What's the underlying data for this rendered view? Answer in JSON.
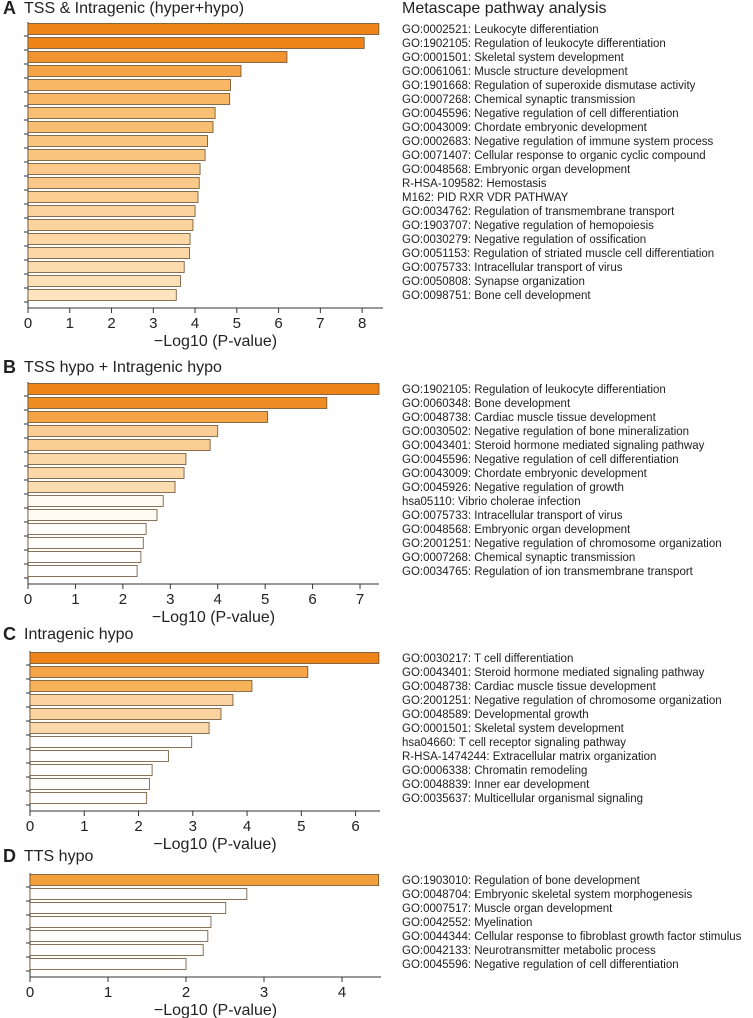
{
  "heading": "Metascape pathway analysis",
  "chart_data": [
    {
      "type": "hbar",
      "panel": "A",
      "title": "TSS & Intragenic (hyper+hypo)",
      "xlabel": "−Log10 (P-value)",
      "categories": [
        "GO:0002521: Leukocyte differentiation",
        "GO:1902105: Regulation of leukocyte differentiation",
        "GO:0001501: Skeletal system development",
        "GO:0061061: Muscle structure development",
        "GO:1901668: Regulation of superoxide dismutase activity",
        "GO:0007268: Chemical synaptic transmission",
        "GO:0045596: Negative regulation of cell differentiation",
        "GO:0043009: Chordate embryonic development",
        "GO:0002683: Negative regulation of immune system process",
        "GO:0071407: Cellular response to organic cyclic compound",
        "GO:0048568: Embryonic organ development",
        "R-HSA-109582: Hemostasis",
        "M162: PID RXR VDR PATHWAY",
        "GO:0034762: Regulation of transmembrane transport",
        "GO:1903707: Negative regulation of hemopoiesis",
        "GO:0030279: Negative regulation of ossification",
        "GO:0051153: Regulation of striated muscle cell differentiation",
        "GO:0075733: Intracellular transport of virus",
        "GO:0050808: Synapse organization",
        "GO:0098751: Bone cell development"
      ],
      "values": [
        8.4,
        8.05,
        6.2,
        5.1,
        4.85,
        4.83,
        4.48,
        4.43,
        4.3,
        4.24,
        4.12,
        4.1,
        4.07,
        4.0,
        3.95,
        3.88,
        3.87,
        3.74,
        3.65,
        3.55
      ],
      "colors": [
        "#ee8317",
        "#ee8317",
        "#f19330",
        "#f4a446",
        "#f7b764",
        "#f7b764",
        "#f8bf72",
        "#f8bf72",
        "#f9c680",
        "#f9c680",
        "#fac98a",
        "#fac98a",
        "#fbcd90",
        "#fbd39c",
        "#fbd39c",
        "#fcd8a6",
        "#fcd8a6",
        "#fcdcae",
        "#fde0b6",
        "#fde4bf"
      ],
      "xlim": [
        0,
        8.5
      ],
      "xticks": [
        0,
        1,
        2,
        3,
        4,
        5,
        6,
        7,
        8
      ]
    },
    {
      "type": "hbar",
      "panel": "B",
      "title": "TSS hypo + Intragenic hypo",
      "xlabel": "−Log10 (P-value)",
      "categories": [
        "GO:1902105: Regulation of leukocyte differentiation",
        "GO:0060348: Bone development",
        "GO:0048738: Cardiac muscle tissue development",
        "GO:0030502: Negative regulation of bone mineralization",
        "GO:0043401: Steroid hormone mediated signaling pathway",
        "GO:0045596: Negative regulation of cell differentiation",
        "GO:0043009: Chordate embryonic development",
        "GO:0045926: Negative regulation of growth",
        "hsa05110: Vibrio cholerae infection",
        "GO:0075733: Intracellular transport of virus",
        "GO:0048568: Embryonic organ development",
        "GO:2001251: Negative regulation of chromosome organization",
        "GO:0007268: Chemical synaptic transmission",
        "GO:0034765: Regulation of ion transmembrane transport"
      ],
      "values": [
        7.4,
        6.3,
        5.05,
        4.0,
        3.84,
        3.33,
        3.29,
        3.1,
        2.85,
        2.72,
        2.49,
        2.43,
        2.38,
        2.3
      ],
      "colors": [
        "#ee8317",
        "#f08c24",
        "#f4a446",
        "#f9cd93",
        "#f9cd93",
        "#fbd8a8",
        "#fbd8a8",
        "#fcddb2",
        "#fffaf2",
        "#fffaf2",
        "#ffffff",
        "#ffffff",
        "#ffffff",
        "#ffffff"
      ],
      "xlim": [
        0,
        7.4
      ],
      "xticks": [
        0,
        1,
        2,
        3,
        4,
        5,
        6,
        7
      ]
    },
    {
      "type": "hbar",
      "panel": "C",
      "title": "Intragenic hypo",
      "xlabel": "−Log10 (P-value)",
      "categories": [
        "GO:0030217: T cell differentiation",
        "GO:0043401: Steroid hormone mediated signaling pathway",
        "GO:0048738: Cardiac muscle tissue development",
        "GO:2001251: Negative regulation of chromosome organization",
        "GO:0048589: Developmental growth",
        "GO:0001501: Skeletal system development",
        "hsa04660: T cell receptor signaling pathway",
        "R-HSA-1474244: Extracellular matrix organization",
        "GO:0006338: Chromatin remodeling",
        "GO:0048839: Inner ear development",
        "GO:0035637: Multicellular organismal signaling"
      ],
      "values": [
        6.43,
        5.12,
        4.09,
        3.74,
        3.52,
        3.3,
        2.98,
        2.55,
        2.25,
        2.2,
        2.15
      ],
      "colors": [
        "#ee8317",
        "#f4a446",
        "#f6b35a",
        "#fad3a0",
        "#fad3a0",
        "#fbd9ab",
        "#ffffff",
        "#ffffff",
        "#ffffff",
        "#ffffff",
        "#ffffff"
      ],
      "xlim": [
        0,
        6.45
      ],
      "xticks": [
        0,
        1,
        2,
        3,
        4,
        5,
        6
      ]
    },
    {
      "type": "hbar",
      "panel": "D",
      "title": "TTS hypo",
      "xlabel": "−Log10 (P-value)",
      "categories": [
        "GO:1903010: Regulation of bone development",
        "GO:0048704: Embryonic skeletal system morphogenesis",
        "GO:0007517: Muscle organ development",
        "GO:0042552: Myelination",
        "GO:0044344: Cellular response to fibroblast growth factor stimulus",
        "GO:0042133: Neurotransmitter metabolic process",
        "GO:0045596: Negative regulation of cell differentiation"
      ],
      "values": [
        4.47,
        2.78,
        2.51,
        2.32,
        2.28,
        2.22,
        2.0
      ],
      "colors": [
        "#f2a03c",
        "#ffffff",
        "#ffffff",
        "#ffffff",
        "#ffffff",
        "#ffffff",
        "#ffffff"
      ],
      "xlim": [
        0,
        4.5
      ],
      "xticks": [
        0,
        1,
        2,
        3,
        4
      ]
    }
  ]
}
